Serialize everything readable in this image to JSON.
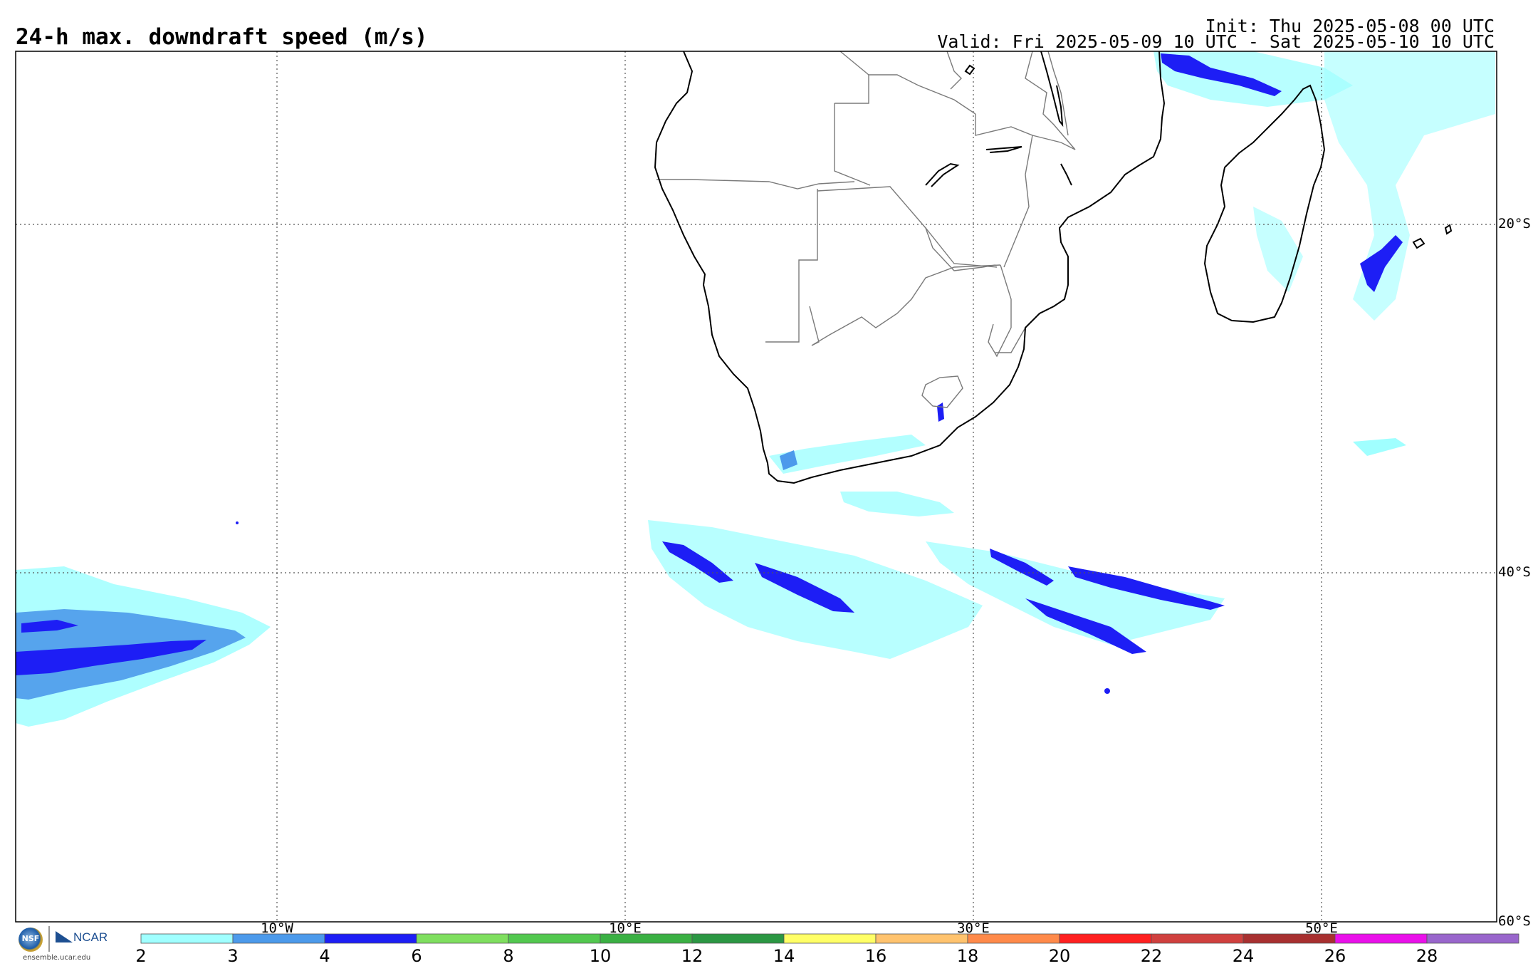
{
  "title": "24-h max. downdraft speed (m/s)",
  "init_text": "Init: Thu 2025-05-08 00 UTC",
  "valid_text": "Valid: Fri 2025-05-09 10 UTC - Sat 2025-05-10 10 UTC",
  "lat_labels": [
    "20°S",
    "40°S",
    "60°S"
  ],
  "lon_labels": [
    "10°W",
    "10°E",
    "30°E",
    "50°E"
  ],
  "colorbar": {
    "labels": [
      "2",
      "3",
      "4",
      "6",
      "8",
      "10",
      "12",
      "14",
      "16",
      "18",
      "20",
      "22",
      "24",
      "26",
      "28"
    ],
    "colors": [
      "#a0ffff",
      "#4c9aeb",
      "#1d1ef5",
      "#7fdf5f",
      "#52c84f",
      "#3ab043",
      "#2b9743",
      "#ffff66",
      "#ffc36e",
      "#ff8a4a",
      "#ff2020",
      "#d0403e",
      "#a83030",
      "#ea10ea",
      "#9966cc"
    ]
  },
  "logos": {
    "nsf_text": "NSF",
    "ncar_text": "NCAR",
    "url": "ensemble.ucar.edu"
  },
  "colors": {
    "light_cyan": "#a0ffff",
    "light_blue": "#4c9aeb",
    "dark_blue": "#1d1ef5",
    "coast": "#000000",
    "border": "#7a7a7a"
  }
}
